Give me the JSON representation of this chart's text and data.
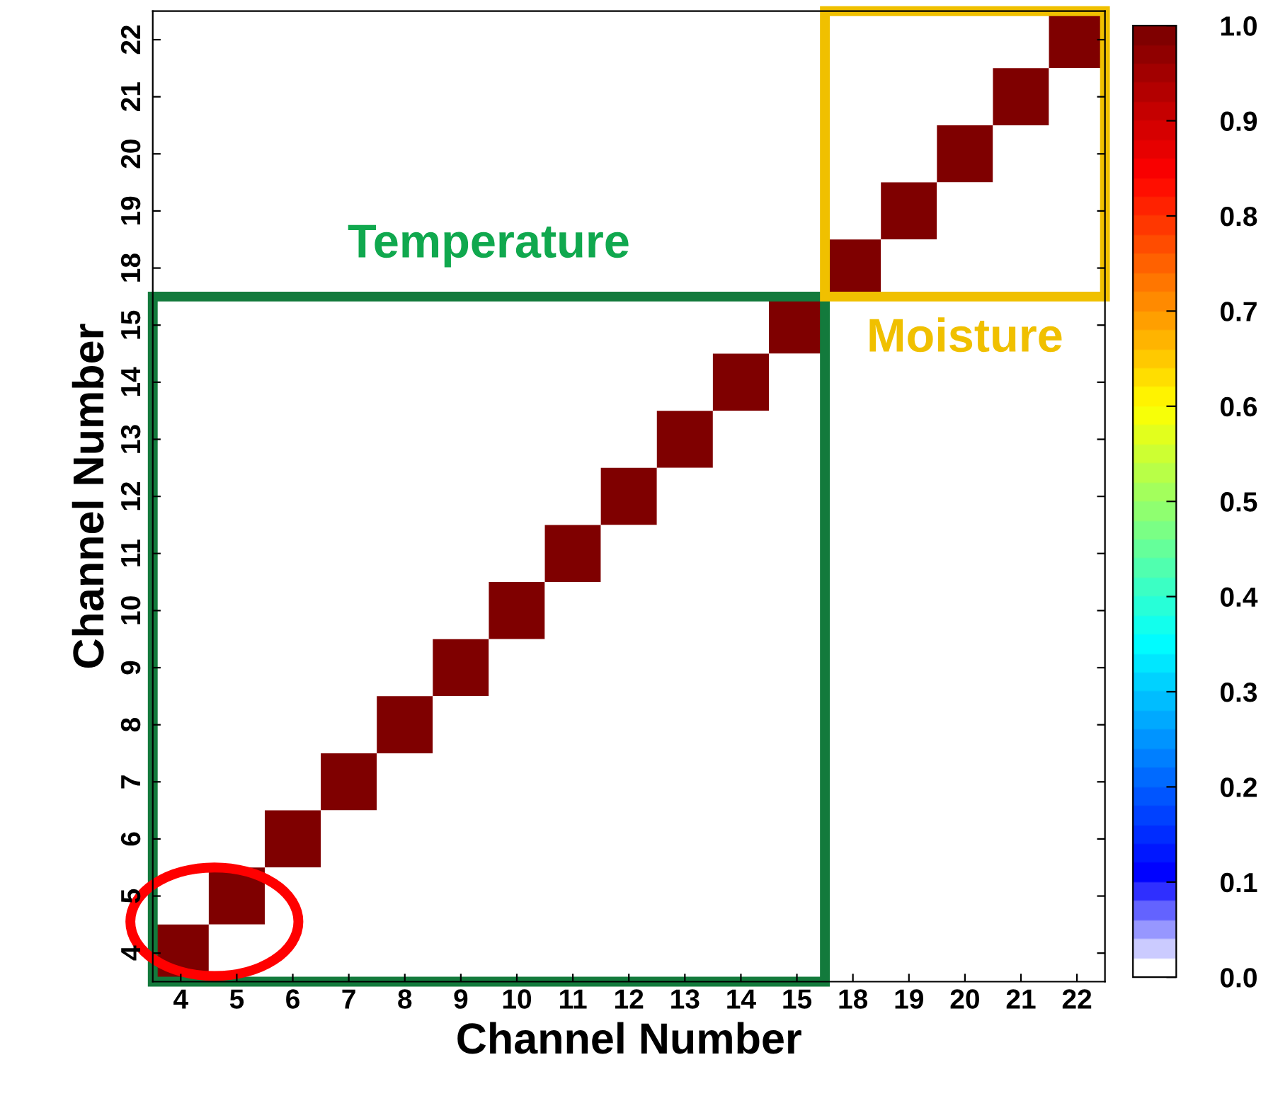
{
  "chart_data": {
    "type": "heatmap",
    "xlabel": "Channel Number",
    "ylabel": "Channel Number",
    "annotations": [
      "Temperature",
      "Moisture"
    ],
    "categories": [
      "4",
      "5",
      "6",
      "7",
      "8",
      "9",
      "10",
      "11",
      "12",
      "13",
      "14",
      "15",
      "18",
      "19",
      "20",
      "21",
      "22"
    ],
    "y_categories": [
      "22",
      "21",
      "20",
      "19",
      "18",
      "15",
      "14",
      "13",
      "12",
      "11",
      "10",
      "9",
      "8",
      "7",
      "6",
      "5",
      "4"
    ],
    "cells": [
      [
        0,
        0,
        0,
        0,
        0,
        0,
        0,
        0,
        0,
        0,
        0,
        0,
        0,
        0,
        0,
        0,
        1
      ],
      [
        0,
        0,
        0,
        0,
        0,
        0,
        0,
        0,
        0,
        0,
        0,
        0,
        0,
        0,
        0,
        1,
        0
      ],
      [
        0,
        0,
        0,
        0,
        0,
        0,
        0,
        0,
        0,
        0,
        0,
        0,
        0,
        0,
        1,
        0,
        0
      ],
      [
        0,
        0,
        0,
        0,
        0,
        0,
        0,
        0,
        0,
        0,
        0,
        0,
        0,
        1,
        0,
        0,
        0
      ],
      [
        0,
        0,
        0,
        0,
        0,
        0,
        0,
        0,
        0,
        0,
        0,
        0,
        1,
        0,
        0,
        0,
        0
      ],
      [
        0,
        0,
        0,
        0,
        0,
        0,
        0,
        0,
        0,
        0,
        0,
        1,
        0,
        0,
        0,
        0,
        0
      ],
      [
        0,
        0,
        0,
        0,
        0,
        0,
        0,
        0,
        0,
        0,
        1,
        0,
        0,
        0,
        0,
        0,
        0
      ],
      [
        0,
        0,
        0,
        0,
        0,
        0,
        0,
        0,
        0,
        1,
        0,
        0,
        0,
        0,
        0,
        0,
        0
      ],
      [
        0,
        0,
        0,
        0,
        0,
        0,
        0,
        0,
        1,
        0,
        0,
        0,
        0,
        0,
        0,
        0,
        0
      ],
      [
        0,
        0,
        0,
        0,
        0,
        0,
        0,
        1,
        0,
        0,
        0,
        0,
        0,
        0,
        0,
        0,
        0
      ],
      [
        0,
        0,
        0,
        0,
        0,
        0,
        1,
        0,
        0,
        0,
        0,
        0,
        0,
        0,
        0,
        0,
        0
      ],
      [
        0,
        0,
        0,
        0,
        0,
        1,
        0,
        0,
        0,
        0,
        0,
        0,
        0,
        0,
        0,
        0,
        0
      ],
      [
        0,
        0,
        0,
        0,
        1,
        0,
        0,
        0,
        0,
        0,
        0,
        0,
        0,
        0,
        0,
        0,
        0
      ],
      [
        0,
        0,
        0,
        1,
        0,
        0,
        0,
        0,
        0,
        0,
        0,
        0,
        0,
        0,
        0,
        0,
        0
      ],
      [
        0,
        0,
        1,
        0,
        0,
        0,
        0,
        0,
        0,
        0,
        0,
        0,
        0,
        0,
        0,
        0,
        0
      ],
      [
        0,
        1,
        0,
        0,
        0,
        0,
        0,
        0,
        0,
        0,
        0,
        0,
        0,
        0,
        0,
        0,
        0
      ],
      [
        1,
        0,
        0,
        0,
        0,
        0,
        0,
        0,
        0,
        0,
        0,
        0,
        0,
        0,
        0,
        0,
        0
      ]
    ],
    "clim": [
      0,
      1
    ],
    "cticks": [
      {
        "value": 0,
        "label": "0.0"
      },
      {
        "value": 0.1,
        "label": "0.1"
      },
      {
        "value": 0.2,
        "label": "0.2"
      },
      {
        "value": 0.3,
        "label": "0.3"
      },
      {
        "value": 0.4,
        "label": "0.4"
      },
      {
        "value": 0.5,
        "label": "0.5"
      },
      {
        "value": 0.6,
        "label": "0.6"
      },
      {
        "value": 0.7,
        "label": "0.7"
      },
      {
        "value": 0.8,
        "label": "0.8"
      },
      {
        "value": 0.9,
        "label": "0.9"
      },
      {
        "value": 1,
        "label": "1.0"
      }
    ]
  }
}
